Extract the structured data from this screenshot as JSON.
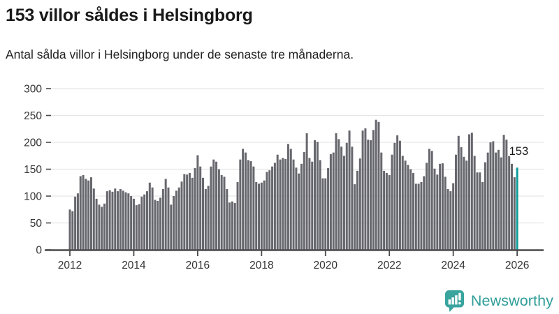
{
  "header": {
    "title": "153 villor såldes i Helsingborg",
    "subtitle": "Antal sålda villor i Helsingborg under de senaste tre månaderna."
  },
  "footer": {
    "brand": "Newsworthy",
    "brand_color": "#2f9d98",
    "icon": "newsworthy-speech-bubble-bar-chart-icon",
    "icon_color": "#3aa49e"
  },
  "chart_data": {
    "type": "bar",
    "title": "153 villor såldes i Helsingborg",
    "subtitle": "Antal sålda villor i Helsingborg under de senaste tre månaderna.",
    "xlabel": "",
    "ylabel": "",
    "x_frequency": "monthly",
    "x_start": "2012-01",
    "x_end": "2026-01",
    "x_tick_labels": [
      "2012",
      "2014",
      "2016",
      "2018",
      "2020",
      "2022",
      "2024",
      "2026"
    ],
    "y_ticks": [
      0,
      50,
      100,
      150,
      200,
      250,
      300
    ],
    "ylim": [
      0,
      300
    ],
    "grid": true,
    "legend": false,
    "bar_color": "#67676e",
    "highlight_color": "#0d9c9c",
    "axis_color": "#4a4a4a",
    "grid_color": "#e6e6e6",
    "tick_label_color": "#333333",
    "annotation_color": "#191919",
    "values": [
      75,
      72,
      99,
      105,
      137,
      139,
      132,
      129,
      135,
      114,
      95,
      84,
      80,
      86,
      109,
      111,
      108,
      114,
      109,
      113,
      110,
      107,
      105,
      100,
      95,
      83,
      85,
      99,
      103,
      109,
      125,
      116,
      93,
      91,
      97,
      113,
      132,
      116,
      84,
      100,
      110,
      116,
      127,
      141,
      140,
      143,
      134,
      152,
      176,
      155,
      134,
      113,
      119,
      155,
      168,
      164,
      150,
      139,
      136,
      113,
      88,
      90,
      87,
      126,
      168,
      188,
      181,
      167,
      165,
      155,
      126,
      123,
      125,
      129,
      145,
      148,
      155,
      162,
      177,
      168,
      171,
      169,
      197,
      188,
      168,
      153,
      142,
      160,
      182,
      217,
      171,
      164,
      204,
      201,
      167,
      133,
      133,
      152,
      178,
      181,
      217,
      206,
      192,
      175,
      199,
      222,
      192,
      122,
      147,
      170,
      222,
      226,
      205,
      204,
      223,
      242,
      238,
      181,
      147,
      143,
      139,
      177,
      199,
      213,
      203,
      175,
      166,
      158,
      150,
      143,
      123,
      123,
      126,
      137,
      162,
      188,
      184,
      151,
      140,
      160,
      161,
      136,
      113,
      109,
      124,
      177,
      212,
      191,
      173,
      166,
      215,
      218,
      175,
      144,
      144,
      126,
      163,
      181,
      200,
      202,
      181,
      186,
      172,
      214,
      205,
      175,
      160,
      135,
      153
    ],
    "highlight": {
      "index": 168,
      "month": "2026-01",
      "value": 153,
      "label": "153"
    }
  }
}
